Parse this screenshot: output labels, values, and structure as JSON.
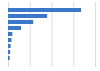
{
  "chart_data": {
    "type": "bar",
    "orientation": "horizontal",
    "categories": [
      null,
      null,
      null,
      null,
      null,
      null,
      null,
      null,
      null
    ],
    "values": [
      84,
      45,
      29,
      15,
      5,
      4,
      3,
      2.5,
      2
    ],
    "color": "#3a78c9",
    "xlim": [
      0,
      100
    ],
    "xticks": [
      0,
      25,
      50,
      75,
      100
    ],
    "grid": true,
    "tick_labels": false
  }
}
